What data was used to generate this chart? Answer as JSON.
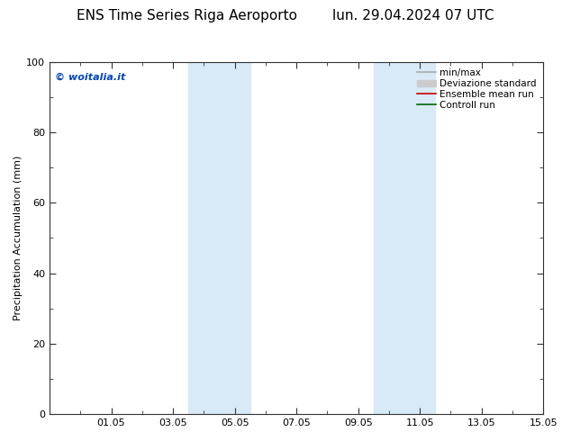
{
  "title": "ENS Time Series Riga Aeroporto        lun. 29.04.2024 07 UTC",
  "ylabel": "Precipitation Accumulation (mm)",
  "ylim": [
    0,
    100
  ],
  "yticks": [
    0,
    20,
    40,
    60,
    80,
    100
  ],
  "xtick_labels": [
    "01.05",
    "03.05",
    "05.05",
    "07.05",
    "09.05",
    "11.05",
    "13.05",
    "15.05"
  ],
  "xtick_positions": [
    2,
    4,
    6,
    8,
    10,
    12,
    14,
    16
  ],
  "xlim": [
    0,
    16
  ],
  "copyright_text": "© woitalia.it",
  "copyright_color": "#0044bb",
  "background_color": "#ffffff",
  "plot_bg_color": "#ffffff",
  "shaded_bands": [
    {
      "x_start": 4.5,
      "x_end": 5.5,
      "color": "#d8eaf8"
    },
    {
      "x_start": 5.5,
      "x_end": 6.5,
      "color": "#d8eaf8"
    },
    {
      "x_start": 10.5,
      "x_end": 11.5,
      "color": "#d8eaf8"
    },
    {
      "x_start": 11.5,
      "x_end": 12.5,
      "color": "#d8eaf8"
    }
  ],
  "legend_entries": [
    {
      "label": "min/max",
      "color": "#aaaaaa",
      "linewidth": 1.2,
      "linestyle": "-",
      "type": "line"
    },
    {
      "label": "Deviazione standard",
      "color": "#cccccc",
      "linewidth": 8,
      "linestyle": "-",
      "type": "patch"
    },
    {
      "label": "Ensemble mean run",
      "color": "#cc0000",
      "linewidth": 1.2,
      "linestyle": "-",
      "type": "line"
    },
    {
      "label": "Controll run",
      "color": "#006600",
      "linewidth": 1.2,
      "linestyle": "-",
      "type": "line"
    }
  ],
  "title_fontsize": 11,
  "axis_label_fontsize": 8,
  "tick_fontsize": 8,
  "legend_fontsize": 7.5,
  "copyright_fontsize": 8,
  "minor_tick_interval": 1,
  "x_num_days": 16
}
